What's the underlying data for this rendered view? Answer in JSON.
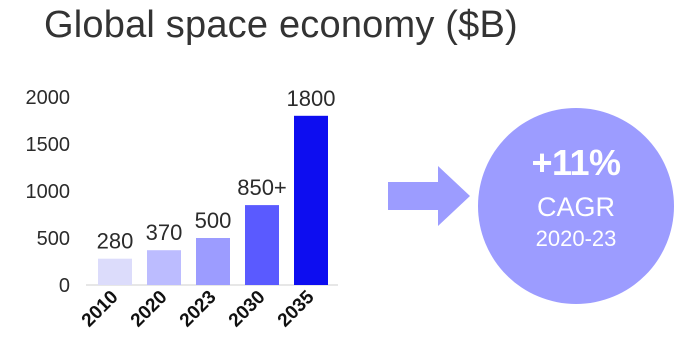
{
  "chart_data": {
    "type": "bar",
    "title": "Global space economy ($B)",
    "categories": [
      "2010",
      "2020",
      "2023",
      "2030",
      "2035"
    ],
    "values": [
      280,
      370,
      500,
      850,
      1800
    ],
    "data_labels": [
      "280",
      "370",
      "500",
      "850+",
      "1800"
    ],
    "colors": [
      "#dcdcfb",
      "#bcbcff",
      "#9c9cff",
      "#5a5aff",
      "#0d0df0"
    ],
    "yticks": [
      "0",
      "500",
      "1000",
      "1500",
      "2000"
    ],
    "ylim": [
      0,
      2000
    ],
    "grid": false,
    "legend": "none"
  },
  "callout": {
    "headline": "+11%",
    "label": "CAGR",
    "period": "2020-23",
    "color": "#9c9cff",
    "arrow_color": "#9c9cff"
  }
}
